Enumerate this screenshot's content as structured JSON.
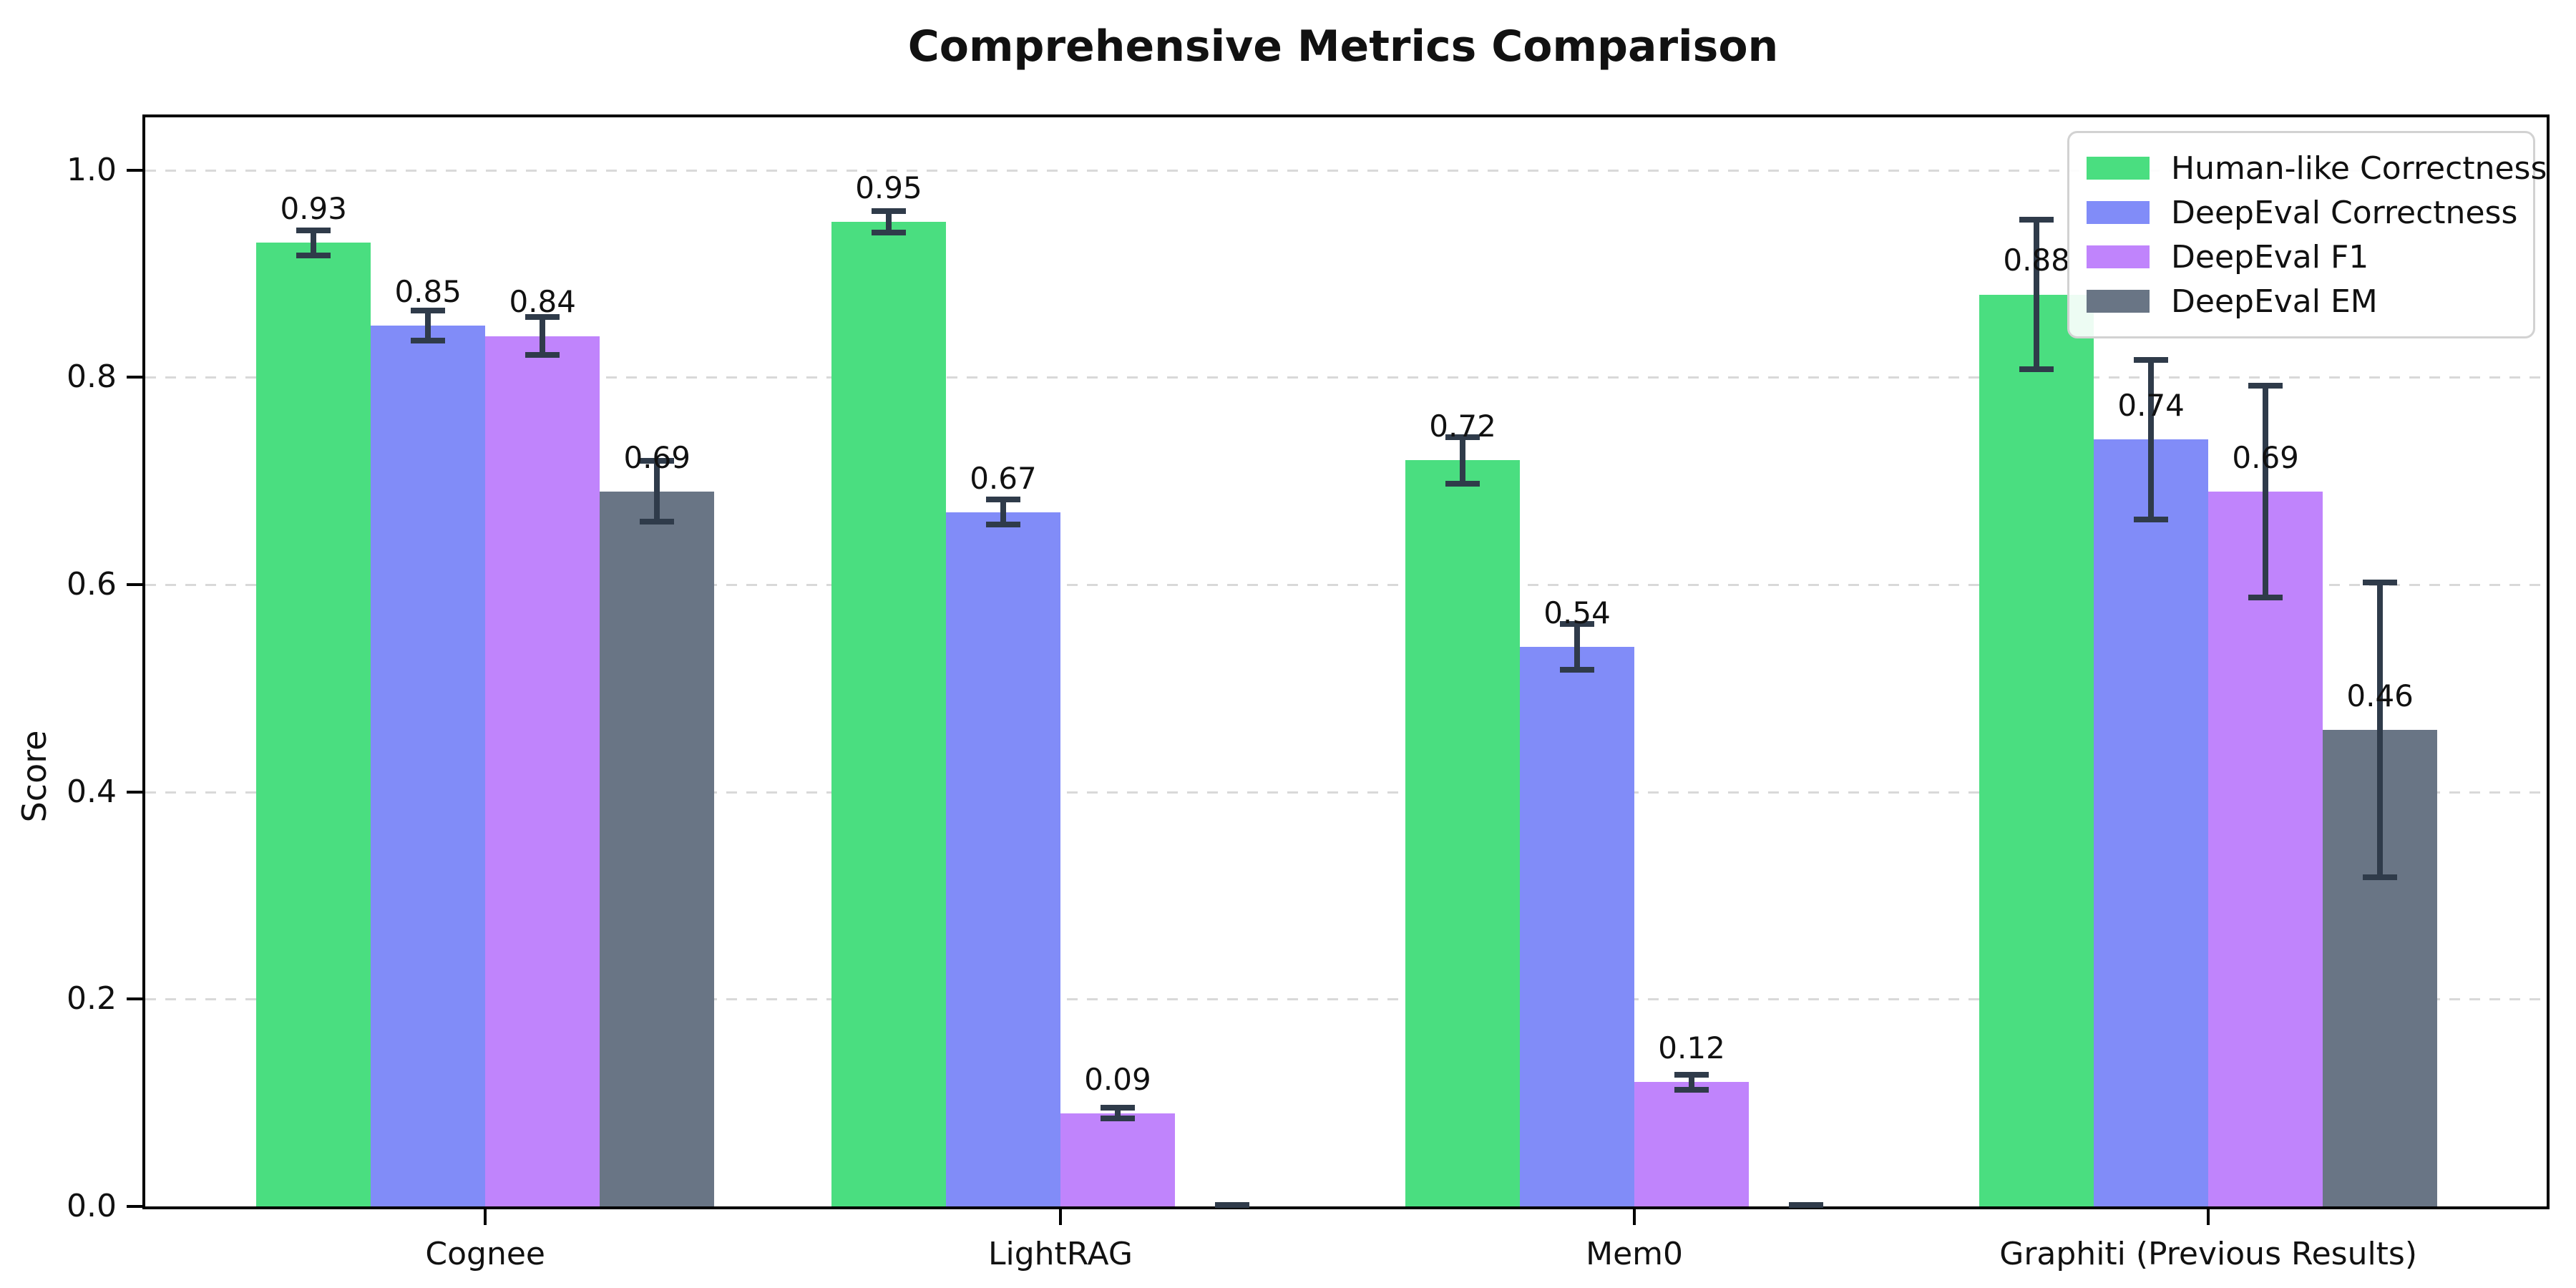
{
  "chart_data": {
    "type": "bar",
    "title": "Comprehensive Metrics Comparison",
    "xlabel": "",
    "ylabel": "Score",
    "categories": [
      "Cognee",
      "LightRAG",
      "Mem0",
      "Graphiti (Previous Results)"
    ],
    "series": [
      {
        "name": "Human-like Correctness",
        "color": "#4ade80",
        "values": [
          0.93,
          0.95,
          0.72,
          0.88
        ],
        "yerr": [
          0.015,
          0.013,
          0.025,
          0.075
        ],
        "labels": [
          "0.93",
          "0.95",
          "0.72",
          "0.88"
        ]
      },
      {
        "name": "DeepEval Correctness",
        "color": "#818cf8",
        "values": [
          0.85,
          0.67,
          0.54,
          0.74
        ],
        "yerr": [
          0.017,
          0.015,
          0.025,
          0.08
        ],
        "labels": [
          "0.85",
          "0.67",
          "0.54",
          "0.74"
        ]
      },
      {
        "name": "DeepEval F1",
        "color": "#c084fc",
        "values": [
          0.84,
          0.09,
          0.12,
          0.69
        ],
        "yerr": [
          0.021,
          0.008,
          0.01,
          0.105
        ],
        "labels": [
          "0.84",
          "0.09",
          "0.12",
          "0.69"
        ]
      },
      {
        "name": "DeepEval EM",
        "color": "#697585",
        "values": [
          0.69,
          0.0,
          0.0,
          0.46
        ],
        "yerr": [
          0.032,
          0.004,
          0.004,
          0.145
        ],
        "labels": [
          "0.69",
          null,
          null,
          "0.46"
        ]
      }
    ],
    "yticks": [
      "0.0",
      "0.2",
      "0.4",
      "0.6",
      "0.8",
      "1.0"
    ],
    "ytick_values": [
      0.0,
      0.2,
      0.4,
      0.6,
      0.8,
      1.0
    ],
    "ylim": [
      0,
      1.051
    ],
    "grid": "horizontal-dashed",
    "legend_position": "upper-right",
    "error_bar_color": "#2f3b4a",
    "grid_color": "#d9d9d9"
  }
}
